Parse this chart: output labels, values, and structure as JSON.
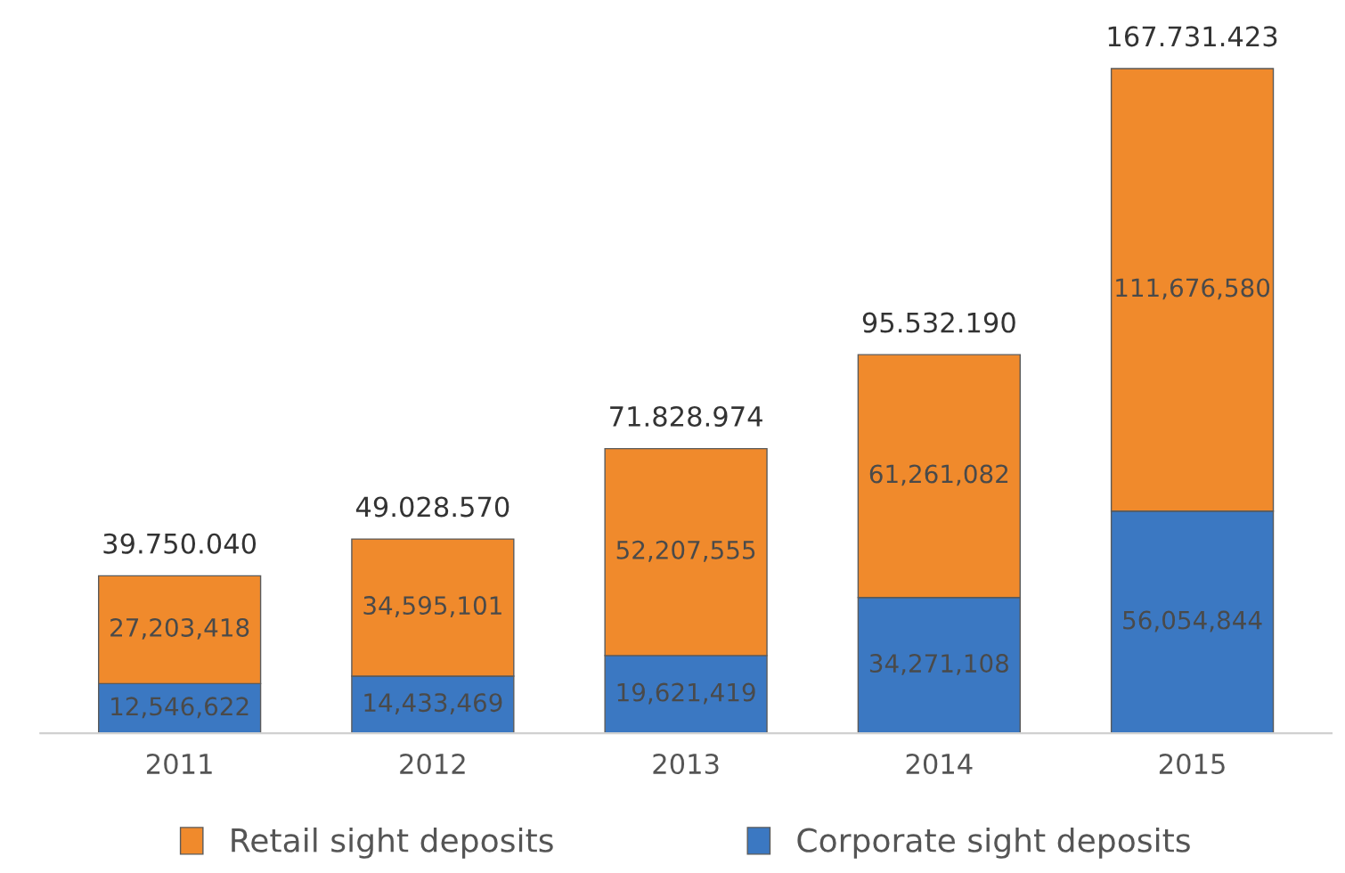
{
  "chart_data": {
    "type": "bar",
    "stacked": true,
    "categories": [
      "2011",
      "2012",
      "2013",
      "2014",
      "2015"
    ],
    "series": [
      {
        "name": "Corporate sight deposits",
        "color": "#3b78c2",
        "values": [
          12546622,
          14433469,
          19621419,
          34271108,
          56054844
        ],
        "value_labels": [
          "12,546,622",
          "14,433,469",
          "19,621,419",
          "34,271,108",
          "56,054,844"
        ]
      },
      {
        "name": "Retail sight deposits",
        "color": "#f08a2c",
        "values": [
          27203418,
          34595101,
          52207555,
          61261082,
          111676580
        ],
        "value_labels": [
          "27,203,418",
          "34,595,101",
          "52,207,555",
          "61,261,082",
          "111,676,580"
        ]
      }
    ],
    "totals": [
      "39.750.040",
      "49.028.570",
      "71.828.974",
      "95.532.190",
      "167.731.423"
    ],
    "legend": "bottom",
    "grid": false
  }
}
